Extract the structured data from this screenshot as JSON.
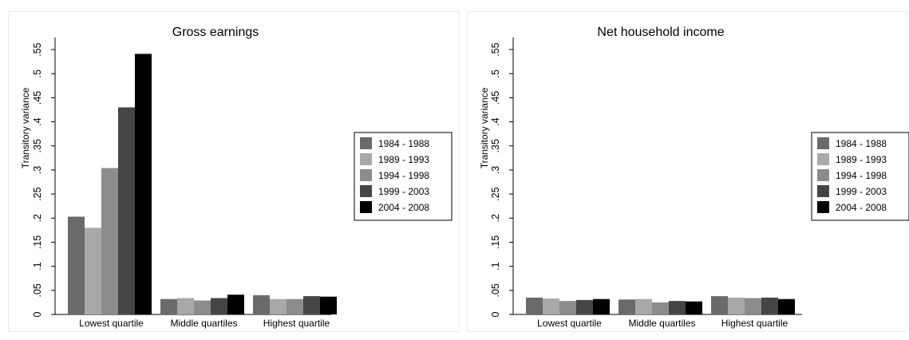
{
  "chart_data": [
    {
      "type": "bar",
      "title": "Gross earnings",
      "xlabel": "",
      "ylabel": "Transitory variance",
      "ylim": [
        0,
        0.575
      ],
      "yticks": [
        "0",
        ".05",
        ".1",
        ".15",
        ".2",
        ".25",
        ".3",
        ".35",
        ".4",
        ".45",
        ".5",
        ".55"
      ],
      "categories": [
        "Lowest quartile",
        "Middle quartiles",
        "Highest quartile"
      ],
      "legend_position": "right",
      "grid": false,
      "series": [
        {
          "name": "1984 - 1988",
          "color": "#6a6a6a",
          "values": [
            0.203,
            0.032,
            0.04
          ]
        },
        {
          "name": "1989 - 1993",
          "color": "#a8a8a8",
          "values": [
            0.18,
            0.034,
            0.032
          ]
        },
        {
          "name": "1994 - 1998",
          "color": "#8c8c8c",
          "values": [
            0.304,
            0.029,
            0.032
          ]
        },
        {
          "name": "1999 - 2003",
          "color": "#454545",
          "values": [
            0.43,
            0.034,
            0.038
          ]
        },
        {
          "name": "2004 - 2008",
          "color": "#000000",
          "values": [
            0.541,
            0.041,
            0.037
          ]
        }
      ]
    },
    {
      "type": "bar",
      "title": "Net household income",
      "xlabel": "",
      "ylabel": "Transitory variance",
      "ylim": [
        0,
        0.575
      ],
      "yticks": [
        "0",
        ".05",
        ".1",
        ".15",
        ".2",
        ".25",
        ".3",
        ".35",
        ".4",
        ".45",
        ".5",
        ".55"
      ],
      "categories": [
        "Lowest quartile",
        "Middle quartiles",
        "Highest quartile"
      ],
      "legend_position": "right",
      "grid": false,
      "series": [
        {
          "name": "1984 - 1988",
          "color": "#6a6a6a",
          "values": [
            0.035,
            0.031,
            0.038
          ]
        },
        {
          "name": "1989 - 1993",
          "color": "#a8a8a8",
          "values": [
            0.033,
            0.032,
            0.035
          ]
        },
        {
          "name": "1994 - 1998",
          "color": "#8c8c8c",
          "values": [
            0.028,
            0.025,
            0.034
          ]
        },
        {
          "name": "1999 - 2003",
          "color": "#454545",
          "values": [
            0.03,
            0.028,
            0.035
          ]
        },
        {
          "name": "2004 - 2008",
          "color": "#000000",
          "values": [
            0.032,
            0.027,
            0.032
          ]
        }
      ]
    }
  ]
}
